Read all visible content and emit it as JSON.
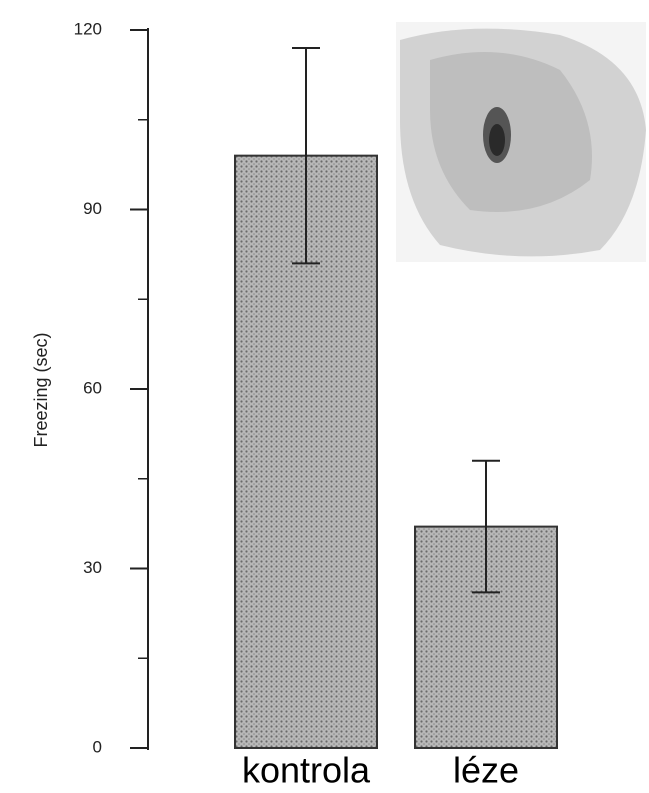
{
  "chart_data": {
    "type": "bar",
    "y_label": "Freezing (sec)",
    "categories": [
      "kontrola",
      "léze"
    ],
    "values": [
      99,
      37
    ],
    "errors": [
      18,
      11
    ],
    "color": "#9a9a9a",
    "ylim": [
      0,
      120
    ],
    "yticks": [
      0,
      30,
      60,
      90,
      120
    ],
    "yminorticks": [
      15,
      45,
      75,
      105
    ],
    "grid": false
  }
}
